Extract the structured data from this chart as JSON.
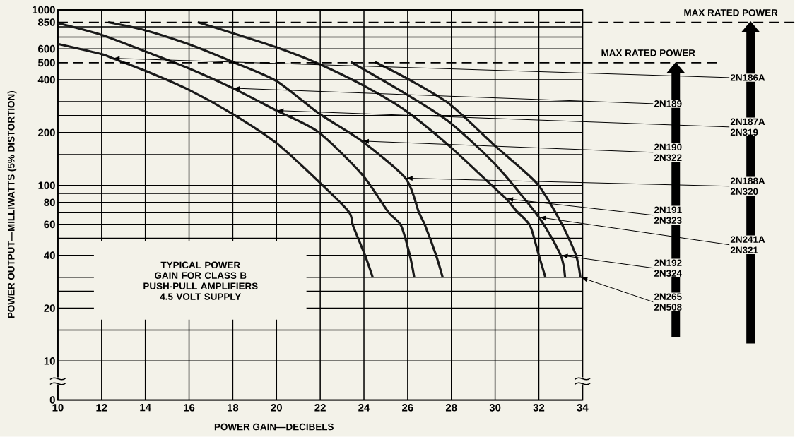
{
  "chart_data": {
    "type": "line",
    "title": "TYPICAL POWER GAIN FOR CLASS B",
    "subtitle": "PUSH-PULL AMPLIFIERS 4.5 VOLT SUPPLY",
    "xlabel": "POWER GAIN—DECIBELS",
    "ylabel": "POWER OUTPUT—MILLIWATTS (5% DISTORTION)",
    "log": "y",
    "grid": true,
    "line_style": "solid",
    "xlim": [
      10,
      34
    ],
    "xticks": [
      10,
      12,
      14,
      16,
      18,
      20,
      22,
      24,
      26,
      28,
      30,
      32,
      34
    ],
    "ylim": [
      0,
      1000
    ],
    "yticks": [
      0,
      10,
      {
        "value": 15,
        "label": null
      },
      20,
      {
        "value": 25,
        "label": null
      },
      {
        "value": 30,
        "label": null
      },
      40,
      {
        "value": 50,
        "label": null
      },
      60,
      {
        "value": 70,
        "label": null
      },
      80,
      {
        "value": 90,
        "label": null
      },
      100,
      {
        "value": 150,
        "label": null
      },
      200,
      {
        "value": 250,
        "label": null
      },
      {
        "value": 300,
        "label": null
      },
      400,
      500,
      600,
      {
        "value": 700,
        "label": null
      },
      {
        "value": 800,
        "label": null
      },
      850,
      1000
    ],
    "series": [
      {
        "color": "#1a1a1a",
        "x": [
          10,
          12,
          12.5,
          14,
          16,
          18,
          20,
          21.9,
          23.3,
          23.5,
          24.05,
          24.4
        ],
        "values": [
          640,
          560,
          530,
          450,
          350,
          255,
          174,
          106,
          71,
          59,
          40,
          30
        ]
      },
      {
        "color": "#1a1a1a",
        "x": [
          10,
          12,
          14,
          16,
          18,
          20,
          21.9,
          23.9,
          25.1,
          25.7,
          26.1,
          26.3
        ],
        "values": [
          840,
          720,
          580,
          464,
          358,
          267,
          202,
          116,
          71,
          59,
          40,
          30
        ]
      },
      {
        "color": "#1a1a1a",
        "x": [
          12.3,
          14,
          16,
          18,
          20,
          21.9,
          23.9,
          25.9,
          26.5,
          26.8,
          27.3,
          27.6
        ],
        "values": [
          850,
          765,
          636,
          505,
          393,
          259,
          179,
          110,
          71,
          59,
          40,
          30
        ]
      },
      {
        "color": "#1a1a1a",
        "x": [
          16.4,
          18,
          20,
          21.9,
          23.9,
          25.9,
          27.9,
          30,
          30.5,
          31,
          31.6,
          32,
          32.3
        ],
        "values": [
          850,
          737,
          612,
          495,
          375,
          267,
          168,
          96,
          84,
          71,
          59,
          40,
          30
        ]
      },
      {
        "color": "#1a1a1a",
        "x": [
          23.4,
          25.9,
          27.9,
          30,
          32,
          33,
          33.2
        ],
        "values": [
          505,
          333,
          230,
          132,
          66,
          40,
          30
        ]
      },
      {
        "color": "#1a1a1a",
        "x": [
          24.5,
          25.9,
          27.9,
          30,
          31.9,
          33,
          33.7,
          33.9
        ],
        "values": [
          505,
          411,
          292,
          168,
          103,
          62,
          40,
          30
        ]
      }
    ],
    "ref_lines": [
      {
        "axis": "y",
        "value": 850,
        "label": "MAX RATED POWER",
        "line_style": "dashed"
      },
      {
        "axis": "y",
        "value": 500,
        "label": "MAX RATED POWER",
        "line_style": "dashed"
      }
    ],
    "annotations": [
      "2N186A",
      "2N189",
      "2N187A 2N319",
      "2N190 2N322",
      "2N188A 2N320",
      "2N191 2N323",
      "2N241A 2N321",
      "2N192 2N324",
      "2N265 2N508"
    ]
  }
}
